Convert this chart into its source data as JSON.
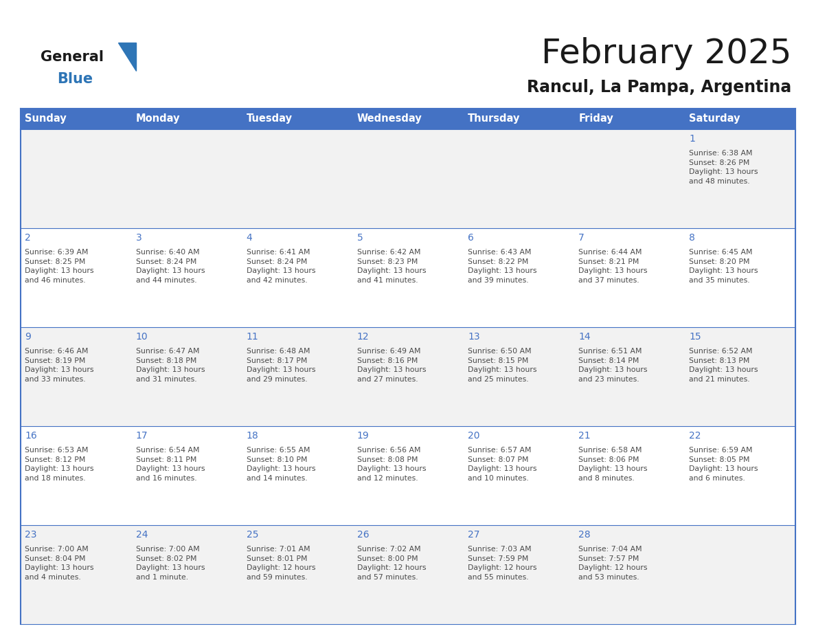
{
  "title": "February 2025",
  "subtitle": "Rancul, La Pampa, Argentina",
  "header_bg": "#4472C4",
  "header_text_color": "#FFFFFF",
  "cell_bg_light": "#F2F2F2",
  "cell_bg_white": "#FFFFFF",
  "border_color": "#4472C4",
  "week_line_color": "#4472C4",
  "day_headers": [
    "Sunday",
    "Monday",
    "Tuesday",
    "Wednesday",
    "Thursday",
    "Friday",
    "Saturday"
  ],
  "title_color": "#1a1a1a",
  "subtitle_color": "#1a1a1a",
  "day_number_color": "#4472C4",
  "cell_text_color": "#4a4a4a",
  "logo_general_color": "#1a1a1a",
  "logo_blue_color": "#2e75b6",
  "weeks": [
    [
      {
        "day": null,
        "info": ""
      },
      {
        "day": null,
        "info": ""
      },
      {
        "day": null,
        "info": ""
      },
      {
        "day": null,
        "info": ""
      },
      {
        "day": null,
        "info": ""
      },
      {
        "day": null,
        "info": ""
      },
      {
        "day": 1,
        "info": "Sunrise: 6:38 AM\nSunset: 8:26 PM\nDaylight: 13 hours\nand 48 minutes."
      }
    ],
    [
      {
        "day": 2,
        "info": "Sunrise: 6:39 AM\nSunset: 8:25 PM\nDaylight: 13 hours\nand 46 minutes."
      },
      {
        "day": 3,
        "info": "Sunrise: 6:40 AM\nSunset: 8:24 PM\nDaylight: 13 hours\nand 44 minutes."
      },
      {
        "day": 4,
        "info": "Sunrise: 6:41 AM\nSunset: 8:24 PM\nDaylight: 13 hours\nand 42 minutes."
      },
      {
        "day": 5,
        "info": "Sunrise: 6:42 AM\nSunset: 8:23 PM\nDaylight: 13 hours\nand 41 minutes."
      },
      {
        "day": 6,
        "info": "Sunrise: 6:43 AM\nSunset: 8:22 PM\nDaylight: 13 hours\nand 39 minutes."
      },
      {
        "day": 7,
        "info": "Sunrise: 6:44 AM\nSunset: 8:21 PM\nDaylight: 13 hours\nand 37 minutes."
      },
      {
        "day": 8,
        "info": "Sunrise: 6:45 AM\nSunset: 8:20 PM\nDaylight: 13 hours\nand 35 minutes."
      }
    ],
    [
      {
        "day": 9,
        "info": "Sunrise: 6:46 AM\nSunset: 8:19 PM\nDaylight: 13 hours\nand 33 minutes."
      },
      {
        "day": 10,
        "info": "Sunrise: 6:47 AM\nSunset: 8:18 PM\nDaylight: 13 hours\nand 31 minutes."
      },
      {
        "day": 11,
        "info": "Sunrise: 6:48 AM\nSunset: 8:17 PM\nDaylight: 13 hours\nand 29 minutes."
      },
      {
        "day": 12,
        "info": "Sunrise: 6:49 AM\nSunset: 8:16 PM\nDaylight: 13 hours\nand 27 minutes."
      },
      {
        "day": 13,
        "info": "Sunrise: 6:50 AM\nSunset: 8:15 PM\nDaylight: 13 hours\nand 25 minutes."
      },
      {
        "day": 14,
        "info": "Sunrise: 6:51 AM\nSunset: 8:14 PM\nDaylight: 13 hours\nand 23 minutes."
      },
      {
        "day": 15,
        "info": "Sunrise: 6:52 AM\nSunset: 8:13 PM\nDaylight: 13 hours\nand 21 minutes."
      }
    ],
    [
      {
        "day": 16,
        "info": "Sunrise: 6:53 AM\nSunset: 8:12 PM\nDaylight: 13 hours\nand 18 minutes."
      },
      {
        "day": 17,
        "info": "Sunrise: 6:54 AM\nSunset: 8:11 PM\nDaylight: 13 hours\nand 16 minutes."
      },
      {
        "day": 18,
        "info": "Sunrise: 6:55 AM\nSunset: 8:10 PM\nDaylight: 13 hours\nand 14 minutes."
      },
      {
        "day": 19,
        "info": "Sunrise: 6:56 AM\nSunset: 8:08 PM\nDaylight: 13 hours\nand 12 minutes."
      },
      {
        "day": 20,
        "info": "Sunrise: 6:57 AM\nSunset: 8:07 PM\nDaylight: 13 hours\nand 10 minutes."
      },
      {
        "day": 21,
        "info": "Sunrise: 6:58 AM\nSunset: 8:06 PM\nDaylight: 13 hours\nand 8 minutes."
      },
      {
        "day": 22,
        "info": "Sunrise: 6:59 AM\nSunset: 8:05 PM\nDaylight: 13 hours\nand 6 minutes."
      }
    ],
    [
      {
        "day": 23,
        "info": "Sunrise: 7:00 AM\nSunset: 8:04 PM\nDaylight: 13 hours\nand 4 minutes."
      },
      {
        "day": 24,
        "info": "Sunrise: 7:00 AM\nSunset: 8:02 PM\nDaylight: 13 hours\nand 1 minute."
      },
      {
        "day": 25,
        "info": "Sunrise: 7:01 AM\nSunset: 8:01 PM\nDaylight: 12 hours\nand 59 minutes."
      },
      {
        "day": 26,
        "info": "Sunrise: 7:02 AM\nSunset: 8:00 PM\nDaylight: 12 hours\nand 57 minutes."
      },
      {
        "day": 27,
        "info": "Sunrise: 7:03 AM\nSunset: 7:59 PM\nDaylight: 12 hours\nand 55 minutes."
      },
      {
        "day": 28,
        "info": "Sunrise: 7:04 AM\nSunset: 7:57 PM\nDaylight: 12 hours\nand 53 minutes."
      },
      {
        "day": null,
        "info": ""
      }
    ]
  ]
}
